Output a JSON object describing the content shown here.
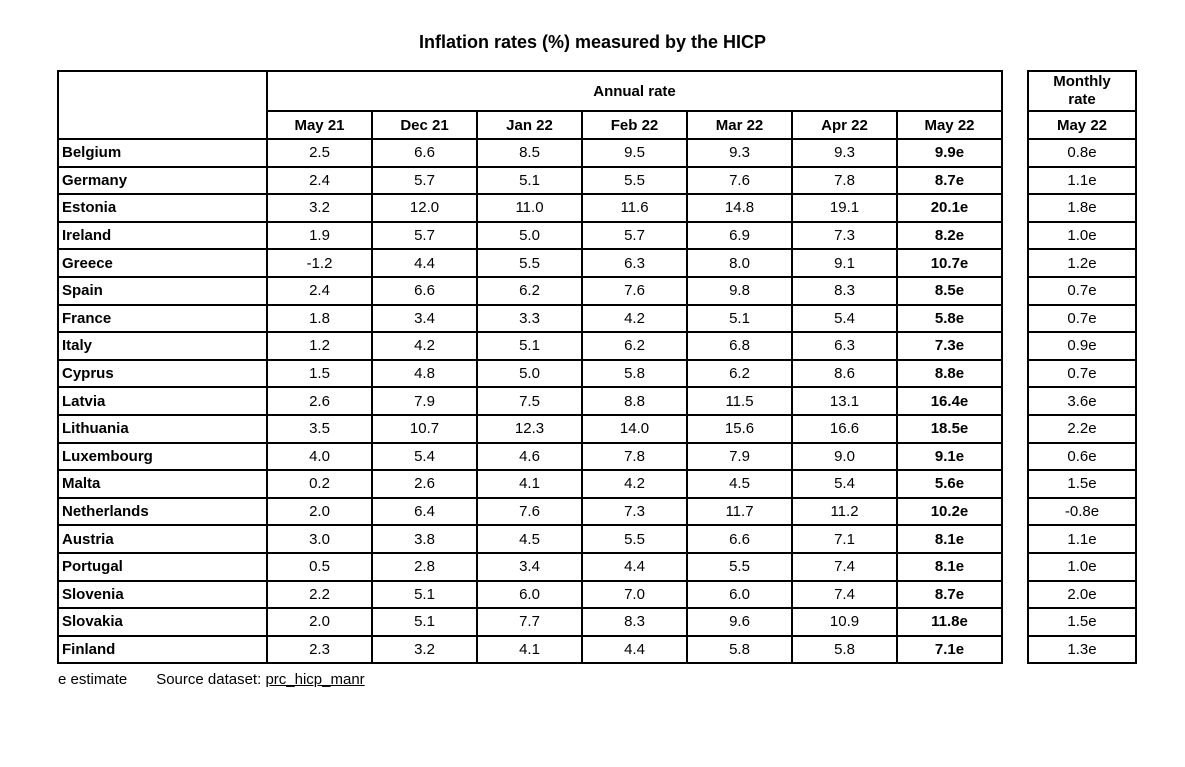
{
  "title": "Inflation rates (%) measured by the HICP",
  "footer": {
    "note": "e estimate",
    "source_label": "Source dataset:",
    "source_link": "prc_hicp_manr"
  },
  "chart_data": {
    "type": "table",
    "title": "Inflation rates (%) measured by the HICP",
    "unit": "%",
    "group_header": "Annual rate",
    "monthly_group_header": "Monthly rate",
    "annual_columns": [
      "May 21",
      "Dec 21",
      "Jan 22",
      "Feb 22",
      "Mar 22",
      "Apr 22",
      "May 22"
    ],
    "monthly_column": "May 22",
    "estimate_flag_meaning": "e estimate",
    "rows": [
      {
        "country": "Belgium",
        "annual": [
          "2.5",
          "6.6",
          "8.5",
          "9.5",
          "9.3",
          "9.3",
          "9.9e"
        ],
        "monthly": "0.8e"
      },
      {
        "country": "Germany",
        "annual": [
          "2.4",
          "5.7",
          "5.1",
          "5.5",
          "7.6",
          "7.8",
          "8.7e"
        ],
        "monthly": "1.1e"
      },
      {
        "country": "Estonia",
        "annual": [
          "3.2",
          "12.0",
          "11.0",
          "11.6",
          "14.8",
          "19.1",
          "20.1e"
        ],
        "monthly": "1.8e"
      },
      {
        "country": "Ireland",
        "annual": [
          "1.9",
          "5.7",
          "5.0",
          "5.7",
          "6.9",
          "7.3",
          "8.2e"
        ],
        "monthly": "1.0e"
      },
      {
        "country": "Greece",
        "annual": [
          "-1.2",
          "4.4",
          "5.5",
          "6.3",
          "8.0",
          "9.1",
          "10.7e"
        ],
        "monthly": "1.2e"
      },
      {
        "country": "Spain",
        "annual": [
          "2.4",
          "6.6",
          "6.2",
          "7.6",
          "9.8",
          "8.3",
          "8.5e"
        ],
        "monthly": "0.7e"
      },
      {
        "country": "France",
        "annual": [
          "1.8",
          "3.4",
          "3.3",
          "4.2",
          "5.1",
          "5.4",
          "5.8e"
        ],
        "monthly": "0.7e"
      },
      {
        "country": "Italy",
        "annual": [
          "1.2",
          "4.2",
          "5.1",
          "6.2",
          "6.8",
          "6.3",
          "7.3e"
        ],
        "monthly": "0.9e"
      },
      {
        "country": "Cyprus",
        "annual": [
          "1.5",
          "4.8",
          "5.0",
          "5.8",
          "6.2",
          "8.6",
          "8.8e"
        ],
        "monthly": "0.7e"
      },
      {
        "country": "Latvia",
        "annual": [
          "2.6",
          "7.9",
          "7.5",
          "8.8",
          "11.5",
          "13.1",
          "16.4e"
        ],
        "monthly": "3.6e"
      },
      {
        "country": "Lithuania",
        "annual": [
          "3.5",
          "10.7",
          "12.3",
          "14.0",
          "15.6",
          "16.6",
          "18.5e"
        ],
        "monthly": "2.2e"
      },
      {
        "country": "Luxembourg",
        "annual": [
          "4.0",
          "5.4",
          "4.6",
          "7.8",
          "7.9",
          "9.0",
          "9.1e"
        ],
        "monthly": "0.6e"
      },
      {
        "country": "Malta",
        "annual": [
          "0.2",
          "2.6",
          "4.1",
          "4.2",
          "4.5",
          "5.4",
          "5.6e"
        ],
        "monthly": "1.5e"
      },
      {
        "country": "Netherlands",
        "annual": [
          "2.0",
          "6.4",
          "7.6",
          "7.3",
          "11.7",
          "11.2",
          "10.2e"
        ],
        "monthly": "-0.8e"
      },
      {
        "country": "Austria",
        "annual": [
          "3.0",
          "3.8",
          "4.5",
          "5.5",
          "6.6",
          "7.1",
          "8.1e"
        ],
        "monthly": "1.1e"
      },
      {
        "country": "Portugal",
        "annual": [
          "0.5",
          "2.8",
          "3.4",
          "4.4",
          "5.5",
          "7.4",
          "8.1e"
        ],
        "monthly": "1.0e"
      },
      {
        "country": "Slovenia",
        "annual": [
          "2.2",
          "5.1",
          "6.0",
          "7.0",
          "6.0",
          "7.4",
          "8.7e"
        ],
        "monthly": "2.0e"
      },
      {
        "country": "Slovakia",
        "annual": [
          "2.0",
          "5.1",
          "7.7",
          "8.3",
          "9.6",
          "10.9",
          "11.8e"
        ],
        "monthly": "1.5e"
      },
      {
        "country": "Finland",
        "annual": [
          "2.3",
          "3.2",
          "4.1",
          "4.4",
          "5.8",
          "5.8",
          "7.1e"
        ],
        "monthly": "1.3e"
      }
    ]
  }
}
